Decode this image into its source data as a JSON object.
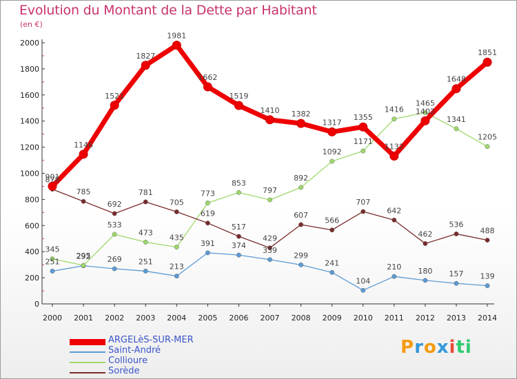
{
  "chart_data": {
    "type": "line",
    "title": "Evolution du Montant de la Dette par Habitant",
    "subtitle": "(en €)",
    "x": [
      "2000",
      "2001",
      "2002",
      "2003",
      "2004",
      "2005",
      "2006",
      "2007",
      "2008",
      "2009",
      "2010",
      "2011",
      "2012",
      "2013",
      "2014"
    ],
    "ylim": [
      0,
      2000
    ],
    "yticks": [
      "0",
      "200",
      "400",
      "600",
      "800",
      "1000",
      "1200",
      "1400",
      "1600",
      "1800",
      "2000"
    ],
    "grid": false,
    "legend_position": "bottom-left",
    "series": [
      {
        "name": "ARGELèS-SUR-MER",
        "color": "#ee0000",
        "values": [
          901,
          1146,
          1521,
          1827,
          1981,
          1662,
          1519,
          1410,
          1382,
          1317,
          1355,
          1132,
          1402,
          1648,
          1851
        ]
      },
      {
        "name": "Saint-André",
        "color": "#5b9bd5",
        "values": [
          251,
          292,
          269,
          251,
          213,
          391,
          374,
          339,
          299,
          241,
          104,
          210,
          180,
          157,
          139
        ]
      },
      {
        "name": "Collioure",
        "color": "#9ed86a",
        "values": [
          345,
          295,
          533,
          473,
          435,
          773,
          853,
          797,
          892,
          1092,
          1171,
          1416,
          1465,
          1341,
          1205
        ]
      },
      {
        "name": "Sorède",
        "color": "#7a2a2a",
        "values": [
          878,
          785,
          692,
          781,
          705,
          619,
          517,
          429,
          607,
          566,
          707,
          642,
          462,
          536,
          488
        ]
      }
    ]
  },
  "logo": {
    "text": "Proxiti",
    "letters": [
      "P",
      "r",
      "o",
      "x",
      "i",
      "t",
      "i"
    ],
    "colors": [
      "#f39c12",
      "#3498db",
      "#f39c12",
      "#3498db",
      "#e74c3c",
      "#2ecc71",
      "#2ecc71"
    ]
  }
}
